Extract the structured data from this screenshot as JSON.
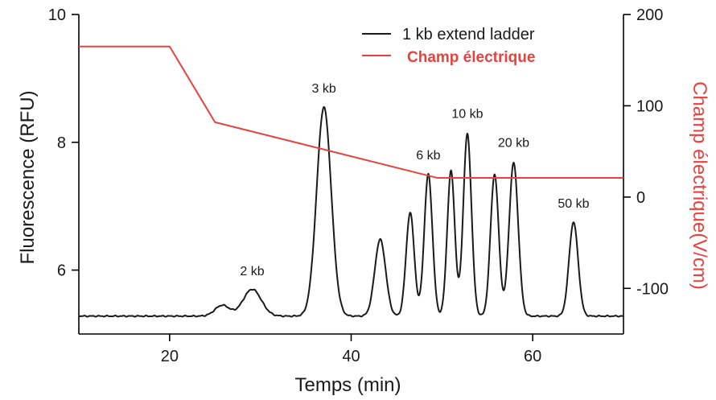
{
  "chart_data": {
    "type": "line",
    "xlabel": "Temps (min)",
    "ylabel": "Fluorescence (RFU)",
    "y2label": "Champ électrique(V/cm)",
    "xlim": [
      10,
      70
    ],
    "ylim": [
      5.0,
      10.0
    ],
    "y2lim": [
      -150,
      200
    ],
    "x_ticks": [
      20,
      40,
      60
    ],
    "y_ticks": [
      6,
      8,
      10
    ],
    "y2_ticks": [
      -100,
      0,
      100,
      200
    ],
    "grid": false,
    "legend_position": "top-right",
    "colors": {
      "trace": "#1a1a1a",
      "field": "#e8423f"
    },
    "series": [
      {
        "name": "1 kb extend ladder",
        "axis": "left",
        "baseline": 5.28,
        "peaks": [
          {
            "x": 25.8,
            "height": 5.45,
            "width": 0.8
          },
          {
            "x": 29.1,
            "height": 5.7,
            "width": 1.0
          },
          {
            "x": 37.0,
            "height": 8.55,
            "width": 0.8
          },
          {
            "x": 43.2,
            "height": 6.48,
            "width": 0.6
          },
          {
            "x": 46.5,
            "height": 6.9,
            "width": 0.45
          },
          {
            "x": 48.5,
            "height": 7.5,
            "width": 0.45
          },
          {
            "x": 51.0,
            "height": 7.55,
            "width": 0.42
          },
          {
            "x": 52.8,
            "height": 8.13,
            "width": 0.45
          },
          {
            "x": 55.8,
            "height": 7.5,
            "width": 0.45
          },
          {
            "x": 57.9,
            "height": 7.68,
            "width": 0.5
          },
          {
            "x": 64.5,
            "height": 6.75,
            "width": 0.5
          }
        ]
      },
      {
        "name": "Champ électrique",
        "axis": "right",
        "x": [
          10,
          20,
          25,
          49.5,
          70
        ],
        "values": [
          165,
          165,
          82,
          21,
          21
        ]
      }
    ],
    "annotations": [
      {
        "text": "2 kb",
        "x": 29.1,
        "y": 5.92
      },
      {
        "text": "3 kb",
        "x": 37.0,
        "y": 8.78
      },
      {
        "text": "6 kb",
        "x": 48.5,
        "y": 7.73
      },
      {
        "text": "10 kb",
        "x": 52.8,
        "y": 8.38
      },
      {
        "text": "20 kb",
        "x": 57.9,
        "y": 7.93
      },
      {
        "text": "50 kb",
        "x": 64.5,
        "y": 6.98
      }
    ]
  }
}
